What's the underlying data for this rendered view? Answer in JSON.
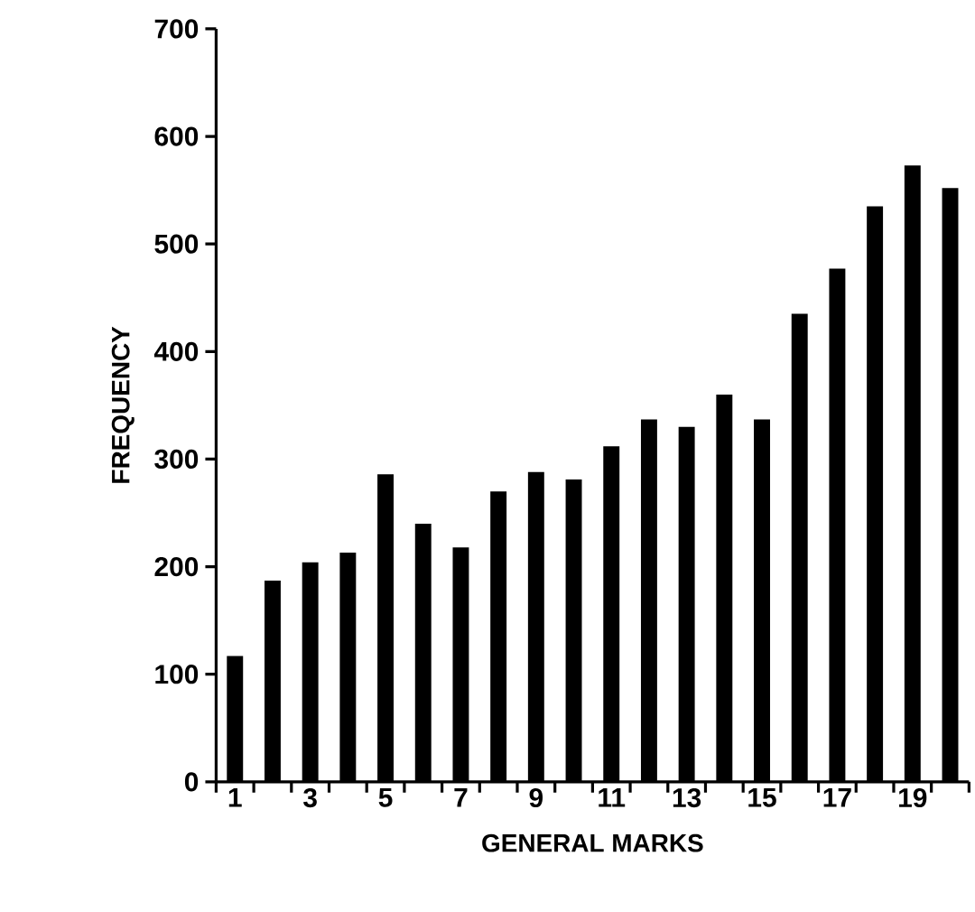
{
  "chart_data": {
    "type": "bar",
    "xlabel": "GENERAL MARKS",
    "ylabel": "FREQUENCY",
    "categories": [
      "1",
      null,
      "3",
      null,
      "5",
      null,
      "7",
      null,
      "9",
      null,
      "11",
      null,
      "13",
      null,
      "15",
      null,
      "17",
      null,
      "19",
      null
    ],
    "values": [
      117,
      187,
      204,
      213,
      286,
      240,
      218,
      270,
      288,
      281,
      312,
      337,
      330,
      360,
      337,
      435,
      477,
      535,
      573,
      552
    ],
    "color": "#000000",
    "ylim": [
      0,
      700
    ],
    "yticks": [
      0,
      100,
      200,
      300,
      400,
      500,
      600,
      700
    ]
  }
}
